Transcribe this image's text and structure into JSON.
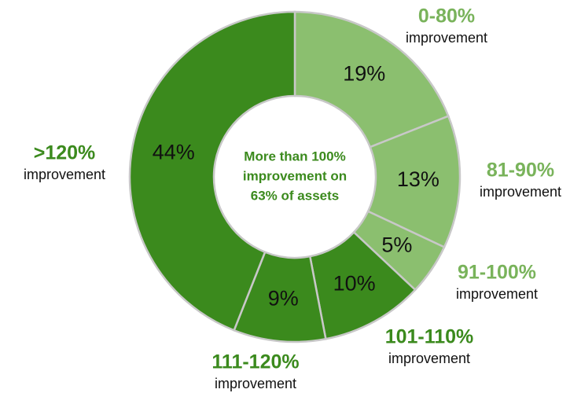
{
  "chart_data": {
    "type": "donut",
    "categories": [
      "0-80%",
      "81-90%",
      "91-100%",
      "101-110%",
      "111-120%",
      ">120%"
    ],
    "category_sublabels": [
      "improvement",
      "improvement",
      "improvement",
      "improvement",
      "improvement",
      "improvement"
    ],
    "values": [
      19,
      13,
      5,
      10,
      9,
      44
    ],
    "value_labels": [
      "19%",
      "13%",
      "5%",
      "10%",
      "9%",
      "44%"
    ],
    "colors": [
      "#8bbf6f",
      "#8bbf6f",
      "#8bbf6f",
      "#3b8a1d",
      "#3b8a1d",
      "#3b8a1d"
    ],
    "label_colors": [
      "#79b35b",
      "#79b35b",
      "#79b35b",
      "#3b8a1d",
      "#3b8a1d",
      "#3b8a1d"
    ],
    "center_text": [
      "More than 100%",
      "improvement on",
      "63% of assets"
    ]
  }
}
